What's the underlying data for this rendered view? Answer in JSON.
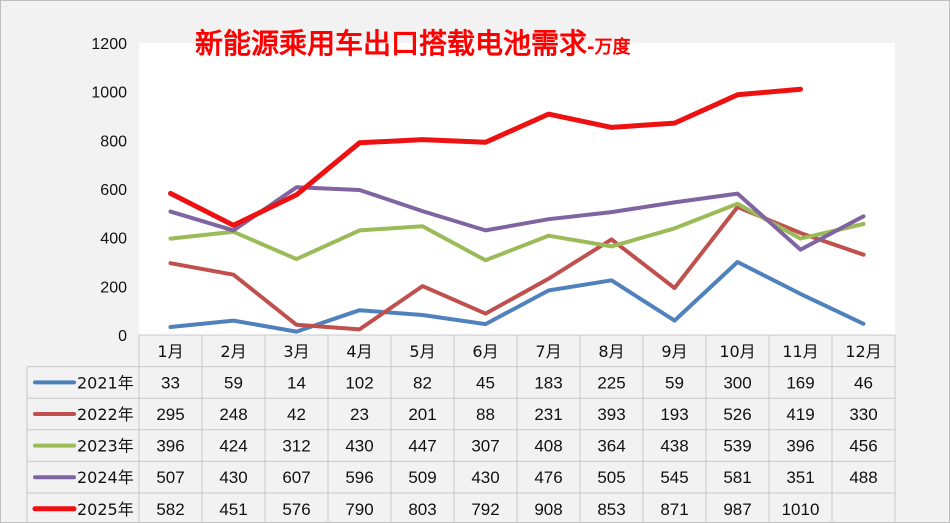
{
  "title": "新能源乘用车出口搭载电池需求",
  "subtitle": "-万度",
  "chart_data": {
    "type": "line",
    "categories": [
      "1月",
      "2月",
      "3月",
      "4月",
      "5月",
      "6月",
      "7月",
      "8月",
      "9月",
      "10月",
      "11月",
      "12月"
    ],
    "ylim": [
      0,
      1200
    ],
    "yticks": [
      0,
      200,
      400,
      600,
      800,
      1000,
      1200
    ],
    "grid": false,
    "legend_placement": "data-table-left",
    "series": [
      {
        "name": "2021年",
        "color": "#4f81bd",
        "values": [
          33,
          59,
          14,
          102,
          82,
          45,
          183,
          225,
          59,
          300,
          169,
          46
        ]
      },
      {
        "name": "2022年",
        "color": "#c0504d",
        "values": [
          295,
          248,
          42,
          23,
          201,
          88,
          231,
          393,
          193,
          526,
          419,
          330
        ]
      },
      {
        "name": "2023年",
        "color": "#9bbb59",
        "values": [
          396,
          424,
          312,
          430,
          447,
          307,
          408,
          364,
          438,
          539,
          396,
          456
        ]
      },
      {
        "name": "2024年",
        "color": "#8064a2",
        "values": [
          507,
          430,
          607,
          596,
          509,
          430,
          476,
          505,
          545,
          581,
          351,
          488
        ]
      },
      {
        "name": "2025年",
        "color": "#ee1111",
        "values": [
          582,
          451,
          576,
          790,
          803,
          792,
          908,
          853,
          871,
          987,
          1010,
          null
        ]
      }
    ]
  }
}
